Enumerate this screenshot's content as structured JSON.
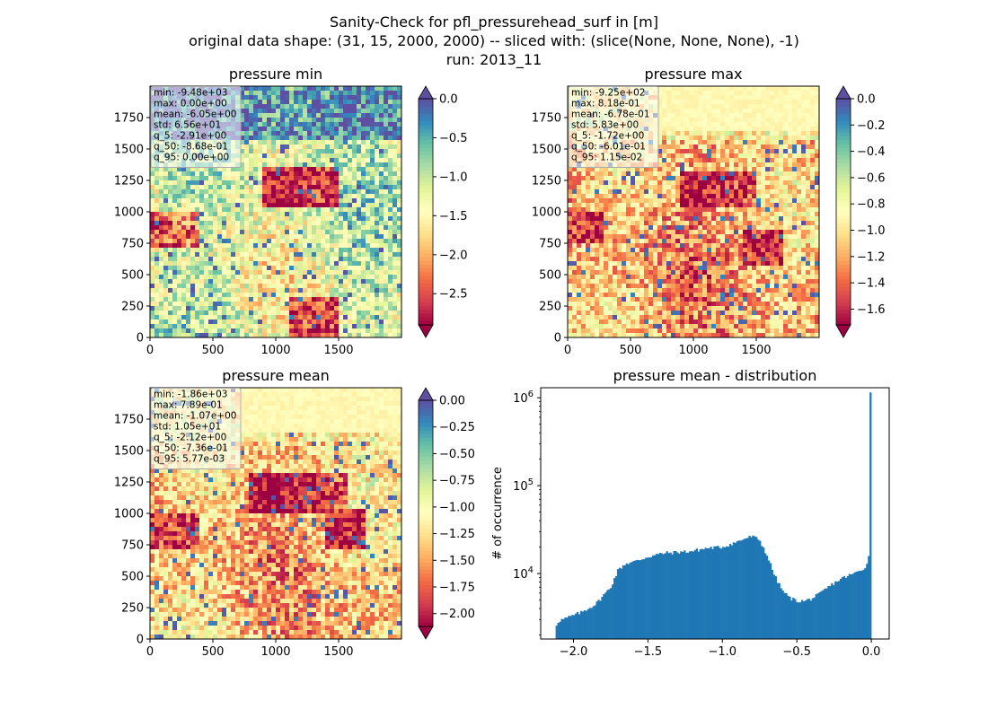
{
  "figure": {
    "title_lines": [
      "Sanity-Check for pfl_pressurehead_surf in [m]",
      "original data shape: (31, 15, 2000, 2000) -- sliced with: (slice(None, None, None), -1)",
      "run: 2013_11"
    ]
  },
  "chart_data": [
    {
      "type": "heatmap",
      "title": "pressure min",
      "xlim": [
        0,
        2000
      ],
      "ylim": [
        0,
        2000
      ],
      "x_ticks": [
        "0",
        "500",
        "1000",
        "1500"
      ],
      "y_ticks": [
        "0",
        "250",
        "500",
        "750",
        "1000",
        "1250",
        "1500",
        "1750"
      ],
      "colormap": "Spectral",
      "colorbar": {
        "min": -2.9,
        "max": 0.0,
        "ticks": [
          "0.0",
          "−0.5",
          "−1.0",
          "−1.5",
          "−2.0",
          "−2.5"
        ],
        "extend": "both",
        "over_color": "#5e4fa2",
        "under_color": "#9e0142"
      },
      "stats": [
        "min: -9.48e+03",
        "max: 0.00e+00",
        "mean: -6.05e+00",
        "std: 6.56e+01",
        "q_5: -2.91e+00",
        "q_50: -8.68e-01",
        "q_95: 0.00e+00"
      ]
    },
    {
      "type": "heatmap",
      "title": "pressure max",
      "xlim": [
        0,
        2000
      ],
      "ylim": [
        0,
        2000
      ],
      "x_ticks": [
        "0",
        "500",
        "1000",
        "1500"
      ],
      "y_ticks": [
        "0",
        "250",
        "500",
        "750",
        "1000",
        "1250",
        "1500",
        "1750"
      ],
      "colormap": "Spectral",
      "colorbar": {
        "min": -1.72,
        "max": 0.0,
        "ticks": [
          "0.0",
          "−0.2",
          "−0.4",
          "−0.6",
          "−0.8",
          "−1.0",
          "−1.2",
          "−1.4",
          "−1.6"
        ],
        "extend": "both",
        "over_color": "#5e4fa2",
        "under_color": "#9e0142"
      },
      "stats": [
        "min: -9.25e+02",
        "max: 8.18e-01",
        "mean: -6.78e-01",
        "std: 5.83e+00",
        "q_5: -1.72e+00",
        "q_50: -6.01e-01",
        "q_95: 1.15e-02"
      ]
    },
    {
      "type": "heatmap",
      "title": "pressure mean",
      "xlim": [
        0,
        2000
      ],
      "ylim": [
        0,
        2000
      ],
      "x_ticks": [
        "0",
        "500",
        "1000",
        "1500"
      ],
      "y_ticks": [
        "0",
        "250",
        "500",
        "750",
        "1000",
        "1250",
        "1500",
        "1750"
      ],
      "colormap": "Spectral",
      "colorbar": {
        "min": -2.12,
        "max": 0.0,
        "ticks": [
          "0.00",
          "−0.25",
          "−0.50",
          "−0.75",
          "−1.00",
          "−1.25",
          "−1.50",
          "−1.75",
          "−2.00"
        ],
        "extend": "both",
        "over_color": "#5e4fa2",
        "under_color": "#9e0142"
      },
      "stats": [
        "min: -1.86e+03",
        "max: 7.89e-01",
        "mean: -1.07e+00",
        "std: 1.05e+01",
        "q_5: -2.12e+00",
        "q_50: -7.36e-01",
        "q_95: 5.77e-03"
      ]
    },
    {
      "type": "bar",
      "title": "pressure mean - distribution",
      "ylabel": "# of occurrence",
      "xlim": [
        -2.22,
        0.12
      ],
      "ylim": [
        1800,
        1300000
      ],
      "y_scale": "log",
      "x_ticks": [
        -2.0,
        -1.5,
        -1.0,
        -0.5,
        0.0
      ],
      "x_tick_labels": [
        "−2.0",
        "−1.5",
        "−1.0",
        "−0.5",
        "0.0"
      ],
      "y_ticks": [
        10000,
        100000,
        1000000
      ],
      "y_tick_labels": [
        "10^4",
        "10^5",
        "10^6"
      ],
      "bar_color": "#1f77b4",
      "bin_range": [
        -2.12,
        0.0
      ],
      "bin_count": 180,
      "density_profile": {
        "x": [
          -2.12,
          -2.1,
          -2.05,
          -1.95,
          -1.85,
          -1.75,
          -1.7,
          -1.65,
          -1.6,
          -1.5,
          -1.4,
          -1.3,
          -1.2,
          -1.1,
          -1.0,
          -0.9,
          -0.85,
          -0.8,
          -0.75,
          -0.7,
          -0.65,
          -0.6,
          -0.55,
          -0.5,
          -0.45,
          -0.4,
          -0.35,
          -0.3,
          -0.25,
          -0.2,
          -0.15,
          -0.1,
          -0.05,
          -0.02,
          -0.01,
          0.0
        ],
        "y": [
          2500,
          2900,
          3100,
          3600,
          4500,
          7000,
          11000,
          13000,
          13500,
          15500,
          17000,
          17500,
          18000,
          19500,
          20000,
          23000,
          25000,
          26500,
          24000,
          16000,
          9500,
          6500,
          5300,
          4900,
          4850,
          5200,
          5800,
          6800,
          7800,
          8800,
          9500,
          10300,
          11500,
          13500,
          24000,
          1150000
        ]
      }
    }
  ]
}
